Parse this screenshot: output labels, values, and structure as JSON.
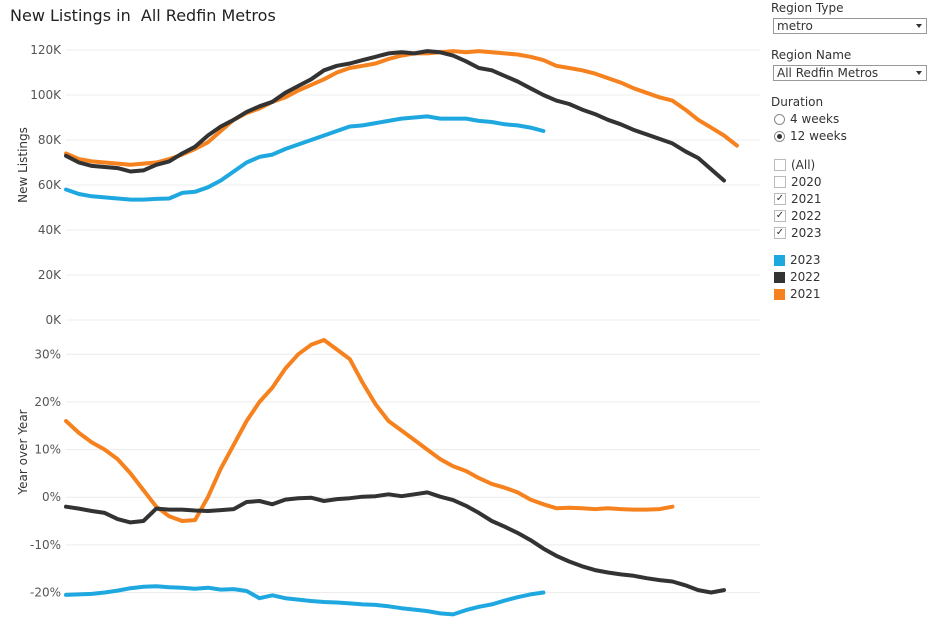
{
  "title": "New Listings in  All Redfin Metros",
  "controls": {
    "region_type": {
      "label": "Region Type",
      "value": "metro"
    },
    "region_name": {
      "label": "Region Name",
      "value": "All Redfin Metros"
    },
    "duration": {
      "label": "Duration",
      "options": [
        {
          "label": "4 weeks",
          "selected": false
        },
        {
          "label": "12 weeks",
          "selected": true
        }
      ]
    },
    "year_filter": [
      {
        "label": "(All)",
        "checked": false
      },
      {
        "label": "2020",
        "checked": false
      },
      {
        "label": "2021",
        "checked": true
      },
      {
        "label": "2022",
        "checked": true
      },
      {
        "label": "2023",
        "checked": true
      }
    ],
    "legend": [
      {
        "label": "2023",
        "color": "#1fa8e0"
      },
      {
        "label": "2022",
        "color": "#333333"
      },
      {
        "label": "2021",
        "color": "#f6821f"
      }
    ]
  },
  "chart_data": [
    {
      "type": "line",
      "title": "New Listings in  All Redfin Metros",
      "xlabel": "",
      "ylabel": "New Listings",
      "ylim": [
        0,
        120000
      ],
      "yticks": [
        0,
        20000,
        40000,
        60000,
        80000,
        100000,
        120000
      ],
      "ytick_labels": [
        "0K",
        "20K",
        "40K",
        "60K",
        "80K",
        "100K",
        "120K"
      ],
      "xlim": [
        1,
        52
      ],
      "series": [
        {
          "name": "2023",
          "color": "#1fa8e0",
          "values": [
            58000,
            56000,
            55000,
            54500,
            54000,
            53500,
            53500,
            53800,
            54000,
            56500,
            57000,
            59000,
            62000,
            66000,
            70000,
            72500,
            73500,
            76000,
            78000,
            80000,
            82000,
            84000,
            86000,
            86500,
            87500,
            88500,
            89500,
            90000,
            90500,
            89500,
            89500,
            89500,
            88500,
            88000,
            87000,
            86500,
            85500,
            84000
          ]
        },
        {
          "name": "2022",
          "color": "#333333",
          "values": [
            73000,
            70000,
            68500,
            68000,
            67500,
            66000,
            66500,
            69000,
            70500,
            74000,
            77000,
            82000,
            86000,
            89000,
            92500,
            95000,
            97000,
            101000,
            104000,
            107000,
            111000,
            113000,
            114000,
            115500,
            117000,
            118500,
            119000,
            118500,
            119500,
            119000,
            117500,
            115000,
            112000,
            111000,
            108500,
            106000,
            103000,
            100000,
            97500,
            96000,
            93500,
            91500,
            89000,
            87000,
            84500,
            82500,
            80500,
            78500,
            75000,
            72000,
            67000,
            62000
          ]
        },
        {
          "name": "2021",
          "color": "#f6821f",
          "values": [
            74000,
            71500,
            70500,
            70000,
            69500,
            69000,
            69500,
            70000,
            71500,
            73500,
            76000,
            79000,
            84000,
            89000,
            92000,
            94000,
            97000,
            99000,
            102000,
            104500,
            107000,
            110000,
            112000,
            113000,
            114000,
            116000,
            117500,
            118500,
            118500,
            119000,
            119500,
            119000,
            119500,
            119000,
            118500,
            118000,
            117000,
            115500,
            113000,
            112000,
            111000,
            109500,
            107500,
            105500,
            103000,
            101000,
            99000,
            97500,
            93500,
            89000,
            85500,
            82000,
            77500
          ]
        }
      ]
    },
    {
      "type": "line",
      "title": "",
      "xlabel": "",
      "ylabel": "Year over Year",
      "ylim": [
        -22,
        33
      ],
      "yticks": [
        -20,
        -10,
        0,
        10,
        20,
        30
      ],
      "ytick_labels": [
        "-20%",
        "-10%",
        "0%",
        "10%",
        "20%",
        "30%"
      ],
      "xlim": [
        1,
        52
      ],
      "series": [
        {
          "name": "2023",
          "color": "#1fa8e0",
          "values": [
            -20.5,
            -20.4,
            -20.3,
            -20,
            -19.6,
            -19.1,
            -18.8,
            -18.7,
            -18.9,
            -19,
            -19.2,
            -19,
            -19.4,
            -19.3,
            -19.7,
            -21.2,
            -20.6,
            -21.2,
            -21.5,
            -21.8,
            -22,
            -22.1,
            -22.3,
            -22.5,
            -22.6,
            -22.9,
            -23.3,
            -23.6,
            -23.9,
            -24.4,
            -24.6,
            -23.7,
            -23,
            -22.5,
            -21.7,
            -21,
            -20.4,
            -20
          ]
        },
        {
          "name": "2022",
          "color": "#333333",
          "values": [
            -2,
            -2.4,
            -2.9,
            -3.3,
            -4.6,
            -5.3,
            -5,
            -2.4,
            -2.6,
            -2.6,
            -2.8,
            -2.9,
            -2.7,
            -2.5,
            -1,
            -0.8,
            -1.5,
            -0.5,
            -0.2,
            -0.1,
            -0.8,
            -0.4,
            -0.2,
            0.1,
            0.2,
            0.6,
            0.2,
            0.6,
            1,
            0.1,
            -0.6,
            -1.8,
            -3.3,
            -5,
            -6.2,
            -7.5,
            -9,
            -10.8,
            -12.3,
            -13.5,
            -14.5,
            -15.3,
            -15.8,
            -16.2,
            -16.5,
            -17,
            -17.4,
            -17.7,
            -18.5,
            -19.5,
            -20,
            -19.5
          ]
        },
        {
          "name": "2021",
          "color": "#f6821f",
          "values": [
            16,
            13.5,
            11.5,
            10,
            8,
            5,
            1.5,
            -2,
            -4,
            -5,
            -4.8,
            0,
            6,
            11,
            16,
            20,
            23,
            27,
            30,
            32,
            33,
            31,
            29,
            24,
            19.5,
            16,
            14,
            12,
            10,
            8,
            6.5,
            5.5,
            4,
            2.8,
            2,
            1,
            -0.5,
            -1.5,
            -2.3,
            -2.2,
            -2.3,
            -2.5,
            -2.3,
            -2.5,
            -2.6,
            -2.6,
            -2.5,
            -2
          ]
        }
      ]
    }
  ]
}
